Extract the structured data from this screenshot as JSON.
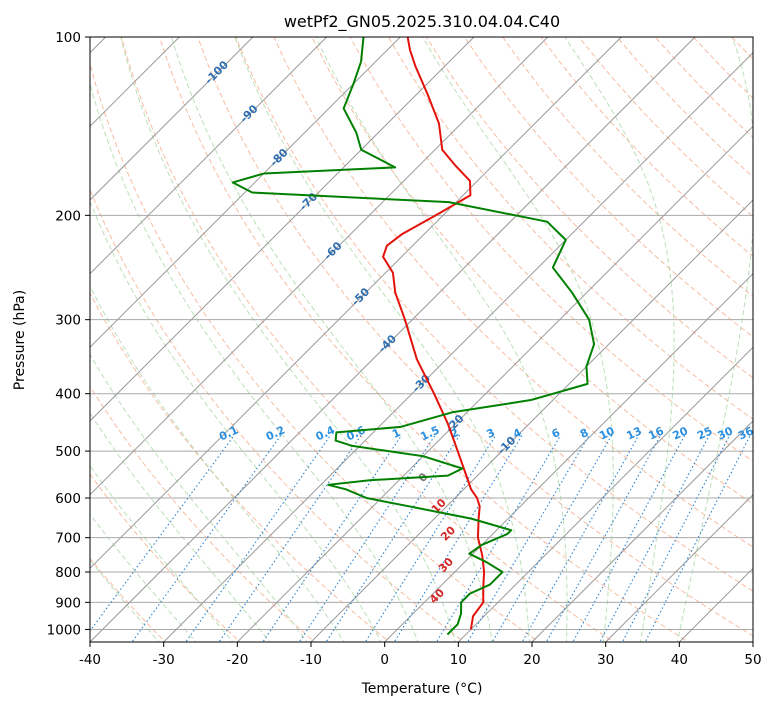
{
  "chart_data": {
    "type": "line",
    "title": "wetPf2_GN05.2025.310.04.04.C40",
    "xlabel": "Temperature (°C)",
    "ylabel": "Pressure (hPa)",
    "xlim": [
      -40,
      50
    ],
    "ylim": [
      1050,
      100
    ],
    "y_scale": "log",
    "skew": "45-degree skew-T",
    "x_ticks": [
      -40,
      -30,
      -20,
      -10,
      0,
      10,
      20,
      30,
      40,
      50
    ],
    "y_ticks": [
      1000,
      900,
      800,
      700,
      600,
      500,
      400,
      300,
      200,
      100
    ],
    "grid": "pressure lines and skewed isotherms (grey)",
    "series": [
      {
        "name": "temperature",
        "color": "#e3120b",
        "points": [
          {
            "p": 1000,
            "t": 10.0
          },
          {
            "p": 950,
            "t": 8.5
          },
          {
            "p": 900,
            "t": 8.0
          },
          {
            "p": 850,
            "t": 6.0
          },
          {
            "p": 800,
            "t": 4.0
          },
          {
            "p": 750,
            "t": 1.5
          },
          {
            "p": 700,
            "t": -1.5
          },
          {
            "p": 650,
            "t": -4.0
          },
          {
            "p": 620,
            "t": -5.5
          },
          {
            "p": 600,
            "t": -7.0
          },
          {
            "p": 580,
            "t": -9.0
          },
          {
            "p": 550,
            "t": -11.5
          },
          {
            "p": 500,
            "t": -16.0
          },
          {
            "p": 450,
            "t": -21.0
          },
          {
            "p": 400,
            "t": -27.0
          },
          {
            "p": 350,
            "t": -34.0
          },
          {
            "p": 300,
            "t": -41.0
          },
          {
            "p": 270,
            "t": -46.0
          },
          {
            "p": 250,
            "t": -49.0
          },
          {
            "p": 235,
            "t": -52.5
          },
          {
            "p": 225,
            "t": -53.5
          },
          {
            "p": 215,
            "t": -53.0
          },
          {
            "p": 200,
            "t": -51.0
          },
          {
            "p": 185,
            "t": -49.0
          },
          {
            "p": 175,
            "t": -51.0
          },
          {
            "p": 165,
            "t": -55.0
          },
          {
            "p": 155,
            "t": -59.0
          },
          {
            "p": 140,
            "t": -63.0
          },
          {
            "p": 125,
            "t": -68.5
          },
          {
            "p": 112,
            "t": -74.0
          },
          {
            "p": 105,
            "t": -77.0
          },
          {
            "p": 100,
            "t": -79.0
          }
        ]
      },
      {
        "name": "dewpoint",
        "color": "#008000",
        "points": [
          {
            "p": 1020,
            "t": 7.5
          },
          {
            "p": 980,
            "t": 7.5
          },
          {
            "p": 940,
            "t": 6.5
          },
          {
            "p": 900,
            "t": 5.0
          },
          {
            "p": 870,
            "t": 5.0
          },
          {
            "p": 840,
            "t": 6.5
          },
          {
            "p": 800,
            "t": 6.5
          },
          {
            "p": 770,
            "t": 3.0
          },
          {
            "p": 745,
            "t": -0.5
          },
          {
            "p": 720,
            "t": 0.0
          },
          {
            "p": 690,
            "t": 2.0
          },
          {
            "p": 680,
            "t": 2.0
          },
          {
            "p": 650,
            "t": -5.0
          },
          {
            "p": 620,
            "t": -15.0
          },
          {
            "p": 600,
            "t": -22.0
          },
          {
            "p": 580,
            "t": -26.0
          },
          {
            "p": 570,
            "t": -29.0
          },
          {
            "p": 560,
            "t": -24.0
          },
          {
            "p": 550,
            "t": -14.0
          },
          {
            "p": 535,
            "t": -13.0
          },
          {
            "p": 510,
            "t": -20.0
          },
          {
            "p": 490,
            "t": -31.0
          },
          {
            "p": 480,
            "t": -34.0
          },
          {
            "p": 465,
            "t": -35.0
          },
          {
            "p": 455,
            "t": -27.0
          },
          {
            "p": 430,
            "t": -22.0
          },
          {
            "p": 410,
            "t": -13.0
          },
          {
            "p": 385,
            "t": -7.5
          },
          {
            "p": 360,
            "t": -10.0
          },
          {
            "p": 330,
            "t": -12.0
          },
          {
            "p": 300,
            "t": -16.0
          },
          {
            "p": 270,
            "t": -22.0
          },
          {
            "p": 245,
            "t": -28.0
          },
          {
            "p": 220,
            "t": -30.0
          },
          {
            "p": 205,
            "t": -35.0
          },
          {
            "p": 190,
            "t": -51.0
          },
          {
            "p": 183,
            "t": -79.0
          },
          {
            "p": 176,
            "t": -83.0
          },
          {
            "p": 170,
            "t": -80.0
          },
          {
            "p": 166,
            "t": -63.0
          },
          {
            "p": 155,
            "t": -70.0
          },
          {
            "p": 145,
            "t": -73.0
          },
          {
            "p": 132,
            "t": -78.0
          },
          {
            "p": 120,
            "t": -80.0
          },
          {
            "p": 110,
            "t": -82.0
          },
          {
            "p": 100,
            "t": -85.0
          }
        ]
      }
    ],
    "isotherm_labels": [
      "-100",
      "-90",
      "-80",
      "-70",
      "-60",
      "-50",
      "-40",
      "-30",
      "-20",
      "-10"
    ],
    "mixing_ratio_labels": [
      "0.1",
      "0.2",
      "0.4",
      "0.6",
      "1",
      "1.5",
      "2",
      "3",
      "4",
      "6",
      "8",
      "10",
      "13",
      "16",
      "20",
      "25",
      "30",
      "36"
    ],
    "theta_e_labels": [
      "0",
      "10",
      "20",
      "30",
      "40"
    ]
  }
}
